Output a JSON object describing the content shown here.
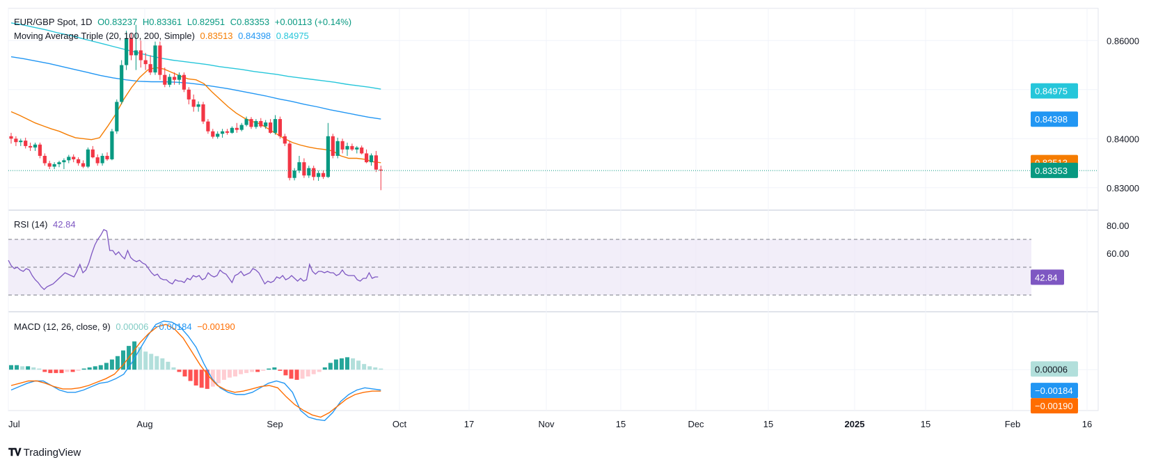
{
  "header": {
    "symbol": "EUR/GBP Spot, 1D",
    "open": "O0.83237",
    "high": "H0.83361",
    "low": "L0.82951",
    "close": "C0.83353",
    "change": "+0.00113 (+0.14%)"
  },
  "ma_legend": {
    "label": "Moving Average Triple (20, 100, 200, Simple)",
    "v20": "0.83513",
    "v100": "0.84398",
    "v200": "0.84975"
  },
  "rsi_legend": {
    "label": "RSI (14)",
    "value": "42.84"
  },
  "macd_legend": {
    "label": "MACD (12, 26, close, 9)",
    "hist": "0.00006",
    "macd": "−0.00184",
    "signal": "−0.00190"
  },
  "colors": {
    "up": "#089981",
    "down": "#f23645",
    "ma20": "#f57c00",
    "ma100": "#2196f3",
    "ma200": "#26c6da",
    "rsi": "#7e57c2",
    "macd": "#2196f3",
    "signal": "#ff6d00",
    "hist_up_strong": "#26a69a",
    "hist_up_weak": "#b2dfdb",
    "hist_down_strong": "#ff5252",
    "hist_down_weak": "#ffcdd2"
  },
  "footer": {
    "brand": "TradingView"
  },
  "chart_data": [
    {
      "type": "candlestick",
      "title": "EUR/GBP Spot, 1D",
      "ylim": [
        0.826,
        0.866
      ],
      "y_ticks": [
        "0.86000",
        "0.84000",
        "0.83000"
      ],
      "x_ticks": [
        "Jul",
        "Aug",
        "Sep",
        "Oct",
        "17",
        "Nov",
        "15",
        "Dec",
        "15",
        "2025",
        "15",
        "Feb",
        "16"
      ],
      "price_badges": [
        {
          "label": "0.84975",
          "color": "#26c6da"
        },
        {
          "label": "0.84398",
          "color": "#2196f3"
        },
        {
          "label": "0.83513",
          "color": "#f57c00"
        },
        {
          "label": "0.83353",
          "color": "#089981"
        }
      ],
      "candles": [
        [
          0.8405,
          0.8412,
          0.839,
          0.84
        ],
        [
          0.84,
          0.8405,
          0.8385,
          0.8393
        ],
        [
          0.8393,
          0.84,
          0.8385,
          0.8396
        ],
        [
          0.8396,
          0.8402,
          0.838,
          0.8385
        ],
        [
          0.8385,
          0.8392,
          0.8375,
          0.8382
        ],
        [
          0.8382,
          0.8392,
          0.8375,
          0.8388
        ],
        [
          0.8388,
          0.8392,
          0.836,
          0.8365
        ],
        [
          0.8365,
          0.837,
          0.8345,
          0.835
        ],
        [
          0.835,
          0.8355,
          0.8338,
          0.8343
        ],
        [
          0.8343,
          0.8352,
          0.8338,
          0.8348
        ],
        [
          0.8348,
          0.8355,
          0.8342,
          0.8352
        ],
        [
          0.8352,
          0.836,
          0.8338,
          0.8356
        ],
        [
          0.8356,
          0.8367,
          0.835,
          0.8363
        ],
        [
          0.8363,
          0.8368,
          0.8352,
          0.8358
        ],
        [
          0.8358,
          0.8362,
          0.8345,
          0.835
        ],
        [
          0.835,
          0.8356,
          0.834,
          0.8343
        ],
        [
          0.8343,
          0.8382,
          0.834,
          0.8378
        ],
        [
          0.8378,
          0.8385,
          0.836,
          0.8362
        ],
        [
          0.8362,
          0.8368,
          0.8345,
          0.835
        ],
        [
          0.835,
          0.837,
          0.8345,
          0.8365
        ],
        [
          0.8365,
          0.8372,
          0.8355,
          0.8358
        ],
        [
          0.8358,
          0.842,
          0.8356,
          0.8415
        ],
        [
          0.8415,
          0.848,
          0.841,
          0.8475
        ],
        [
          0.8475,
          0.856,
          0.847,
          0.855
        ],
        [
          0.855,
          0.862,
          0.854,
          0.8605
        ],
        [
          0.8605,
          0.8615,
          0.856,
          0.857
        ],
        [
          0.857,
          0.8632,
          0.854,
          0.858
        ],
        [
          0.858,
          0.86,
          0.8545,
          0.856
        ],
        [
          0.856,
          0.8575,
          0.854,
          0.8552
        ],
        [
          0.8552,
          0.857,
          0.853,
          0.8535
        ],
        [
          0.8535,
          0.8598,
          0.853,
          0.859
        ],
        [
          0.859,
          0.8598,
          0.852,
          0.853
        ],
        [
          0.853,
          0.8545,
          0.8505,
          0.851
        ],
        [
          0.851,
          0.8532,
          0.8505,
          0.8526
        ],
        [
          0.8526,
          0.8535,
          0.851,
          0.852
        ],
        [
          0.852,
          0.8535,
          0.851,
          0.853
        ],
        [
          0.853,
          0.8535,
          0.8495,
          0.85
        ],
        [
          0.85,
          0.8505,
          0.847,
          0.848
        ],
        [
          0.848,
          0.849,
          0.8455,
          0.8465
        ],
        [
          0.8465,
          0.8476,
          0.8455,
          0.847
        ],
        [
          0.847,
          0.8475,
          0.843,
          0.8435
        ],
        [
          0.8435,
          0.844,
          0.841,
          0.8415
        ],
        [
          0.8415,
          0.842,
          0.84,
          0.8404
        ],
        [
          0.8404,
          0.8415,
          0.84,
          0.841
        ],
        [
          0.841,
          0.842,
          0.8402,
          0.8415
        ],
        [
          0.8415,
          0.842,
          0.8408,
          0.8412
        ],
        [
          0.8412,
          0.8425,
          0.841,
          0.8422
        ],
        [
          0.8422,
          0.8432,
          0.8412,
          0.8418
        ],
        [
          0.8418,
          0.8432,
          0.8415,
          0.8428
        ],
        [
          0.8428,
          0.8445,
          0.8425,
          0.844
        ],
        [
          0.844,
          0.8444,
          0.842,
          0.8424
        ],
        [
          0.8424,
          0.844,
          0.842,
          0.8436
        ],
        [
          0.8436,
          0.8442,
          0.8422,
          0.8425
        ],
        [
          0.8425,
          0.8438,
          0.842,
          0.8433
        ],
        [
          0.8433,
          0.844,
          0.841,
          0.8412
        ],
        [
          0.8412,
          0.8448,
          0.8408,
          0.844
        ],
        [
          0.844,
          0.8445,
          0.84,
          0.8405
        ],
        [
          0.8405,
          0.841,
          0.8385,
          0.839
        ],
        [
          0.839,
          0.8395,
          0.8315,
          0.832
        ],
        [
          0.832,
          0.834,
          0.8315,
          0.8335
        ],
        [
          0.8335,
          0.8365,
          0.833,
          0.8352
        ],
        [
          0.8352,
          0.836,
          0.832,
          0.8325
        ],
        [
          0.8325,
          0.8345,
          0.832,
          0.834
        ],
        [
          0.834,
          0.8345,
          0.8315,
          0.8322
        ],
        [
          0.8322,
          0.8335,
          0.8314,
          0.833
        ],
        [
          0.833,
          0.8335,
          0.8318,
          0.8322
        ],
        [
          0.8322,
          0.8432,
          0.832,
          0.8405
        ],
        [
          0.8405,
          0.841,
          0.836,
          0.8365
        ],
        [
          0.8365,
          0.8402,
          0.836,
          0.8395
        ],
        [
          0.8395,
          0.84,
          0.837,
          0.8378
        ],
        [
          0.8378,
          0.8392,
          0.8365,
          0.8385
        ],
        [
          0.8385,
          0.839,
          0.8375,
          0.8378
        ],
        [
          0.8378,
          0.8385,
          0.837,
          0.8382
        ],
        [
          0.8382,
          0.8386,
          0.8368,
          0.837
        ],
        [
          0.837,
          0.8378,
          0.835,
          0.8352
        ],
        [
          0.8352,
          0.837,
          0.8345,
          0.8366
        ],
        [
          0.8366,
          0.8375,
          0.8332,
          0.8337
        ],
        [
          0.8337,
          0.8345,
          0.8295,
          0.8335
        ]
      ],
      "ma200": [
        0.8636,
        0.8632,
        0.8627,
        0.8622,
        0.8616,
        0.8611,
        0.8605,
        0.8599,
        0.8593,
        0.8587,
        0.8581,
        0.8575,
        0.8569,
        0.8564,
        0.856,
        0.8557,
        0.8554,
        0.8551,
        0.8547,
        0.8544,
        0.8541,
        0.8537,
        0.8534,
        0.8531,
        0.8527,
        0.8524,
        0.8521,
        0.8518,
        0.8515,
        0.8511,
        0.8508,
        0.8505,
        0.8501
      ],
      "ma100": [
        0.8567,
        0.8563,
        0.8558,
        0.8553,
        0.8547,
        0.8541,
        0.8535,
        0.8529,
        0.8524,
        0.852,
        0.8517,
        0.8516,
        0.8516,
        0.8515,
        0.8513,
        0.851,
        0.8506,
        0.8502,
        0.8497,
        0.8492,
        0.8487,
        0.8481,
        0.8476,
        0.847,
        0.8465,
        0.8459,
        0.8454,
        0.8449,
        0.8444,
        0.844
      ],
      "ma20": [
        0.8455,
        0.8448,
        0.844,
        0.8432,
        0.8426,
        0.842,
        0.8415,
        0.8408,
        0.8402,
        0.84,
        0.8398,
        0.8402,
        0.8425,
        0.845,
        0.848,
        0.8505,
        0.8525,
        0.854,
        0.8545,
        0.8542,
        0.8535,
        0.8528,
        0.8522,
        0.852,
        0.8512,
        0.8495,
        0.848,
        0.8465,
        0.8452,
        0.8442,
        0.8435,
        0.843,
        0.842,
        0.841,
        0.84,
        0.8392,
        0.8387,
        0.8383,
        0.838,
        0.8378,
        0.8375,
        0.8365,
        0.836,
        0.836,
        0.8358,
        0.8353,
        0.8351
      ]
    },
    {
      "type": "line",
      "title": "RSI (14)",
      "ylim": [
        20,
        90
      ],
      "y_ticks": [
        "80.00",
        "60.00"
      ],
      "bands": [
        70,
        50,
        30
      ],
      "values": [
        55,
        51,
        49,
        50,
        48,
        47,
        49,
        48,
        44,
        41,
        39,
        36,
        34,
        36,
        37,
        38,
        40,
        42,
        44,
        46,
        45,
        44,
        43,
        47,
        52,
        46,
        48,
        53,
        60,
        66,
        70,
        73,
        77,
        76,
        62,
        62,
        59,
        61,
        58,
        56,
        62,
        57,
        55,
        54,
        55,
        53,
        52,
        49,
        46,
        44,
        45,
        42,
        41,
        41,
        39,
        38,
        41,
        40,
        40,
        39,
        42,
        41,
        44,
        43,
        44,
        41,
        42,
        46,
        44,
        43,
        44,
        48,
        46,
        45,
        42,
        39,
        44,
        45,
        47,
        44,
        45,
        46,
        49,
        48,
        46,
        42,
        38,
        40,
        39,
        40,
        43,
        42,
        44,
        41,
        42,
        44,
        42,
        40,
        42,
        40,
        41,
        52,
        47,
        45,
        47,
        47,
        46,
        47,
        46,
        46,
        44,
        45,
        48,
        45,
        44,
        44,
        44,
        41,
        40,
        42,
        42,
        46,
        42,
        43,
        43
      ],
      "last": 42.84
    },
    {
      "type": "bar+line",
      "title": "MACD (12, 26, close, 9)",
      "ylim": [
        -0.003,
        0.005
      ],
      "y_ticks": [],
      "histogram": [
        0.0004,
        0.0004,
        0.0003,
        0.0003,
        0.0002,
        0.0001,
        -0.0002,
        -0.0003,
        -0.0003,
        -0.0003,
        -0.0002,
        -0.0002,
        -0.0001,
        0.0001,
        0.0002,
        0.0003,
        0.0004,
        0.0006,
        0.0009,
        0.0012,
        0.0017,
        0.0021,
        0.0025,
        0.002,
        0.0016,
        0.0014,
        0.0012,
        0.001,
        0.0007,
        0.0002,
        -0.0002,
        -0.0006,
        -0.001,
        -0.0014,
        -0.0016,
        -0.0017,
        -0.0015,
        -0.0012,
        -0.0009,
        -0.0007,
        -0.0006,
        -0.0004,
        -0.0003,
        -0.0002,
        -0.0002,
        -0.0001,
        0.0001,
        0.0002,
        -0.0001,
        -0.0005,
        -0.0008,
        -0.0009,
        -0.0008,
        -0.0006,
        -0.0004,
        -0.0002,
        0.0002,
        0.0006,
        0.0009,
        0.001,
        0.0011,
        0.001,
        0.0008,
        0.0005,
        0.0003,
        0.0002,
        0.0001
      ],
      "macd": [
        -0.0018,
        -0.0015,
        -0.0012,
        -0.001,
        -0.001,
        -0.0014,
        -0.0018,
        -0.002,
        -0.002,
        -0.0018,
        -0.0015,
        -0.0012,
        -0.0011,
        -0.0008,
        -0.0004,
        0.0006,
        0.0018,
        0.003,
        0.004,
        0.0043,
        0.0042,
        0.0038,
        0.003,
        0.002,
        0.0005,
        -0.0008,
        -0.0016,
        -0.002,
        -0.0022,
        -0.0022,
        -0.002,
        -0.0016,
        -0.0012,
        -0.001,
        -0.0012,
        -0.002,
        -0.0036,
        -0.0042,
        -0.0044,
        -0.0045,
        -0.0038,
        -0.0028,
        -0.0022,
        -0.0018,
        -0.0016,
        -0.0017,
        -0.0018
      ],
      "signal": [
        -0.0014,
        -0.0012,
        -0.001,
        -0.001,
        -0.0012,
        -0.0015,
        -0.0017,
        -0.0017,
        -0.0016,
        -0.0014,
        -0.0011,
        -0.0008,
        -0.0004,
        0.0004,
        0.0014,
        0.0024,
        0.0032,
        0.0038,
        0.004,
        0.0036,
        0.0028,
        0.0016,
        0.0004,
        -0.0006,
        -0.0014,
        -0.0018,
        -0.002,
        -0.0019,
        -0.0017,
        -0.0015,
        -0.0014,
        -0.0016,
        -0.0024,
        -0.0031,
        -0.0036,
        -0.004,
        -0.0042,
        -0.0038,
        -0.0032,
        -0.0026,
        -0.0022,
        -0.002,
        -0.0019,
        -0.0019
      ],
      "price_badges": [
        {
          "label": "0.00006",
          "color": "#b2dfdb"
        },
        {
          "label": "−0.00184",
          "color": "#2196f3"
        },
        {
          "label": "−0.00190",
          "color": "#ff6d00"
        }
      ]
    }
  ]
}
